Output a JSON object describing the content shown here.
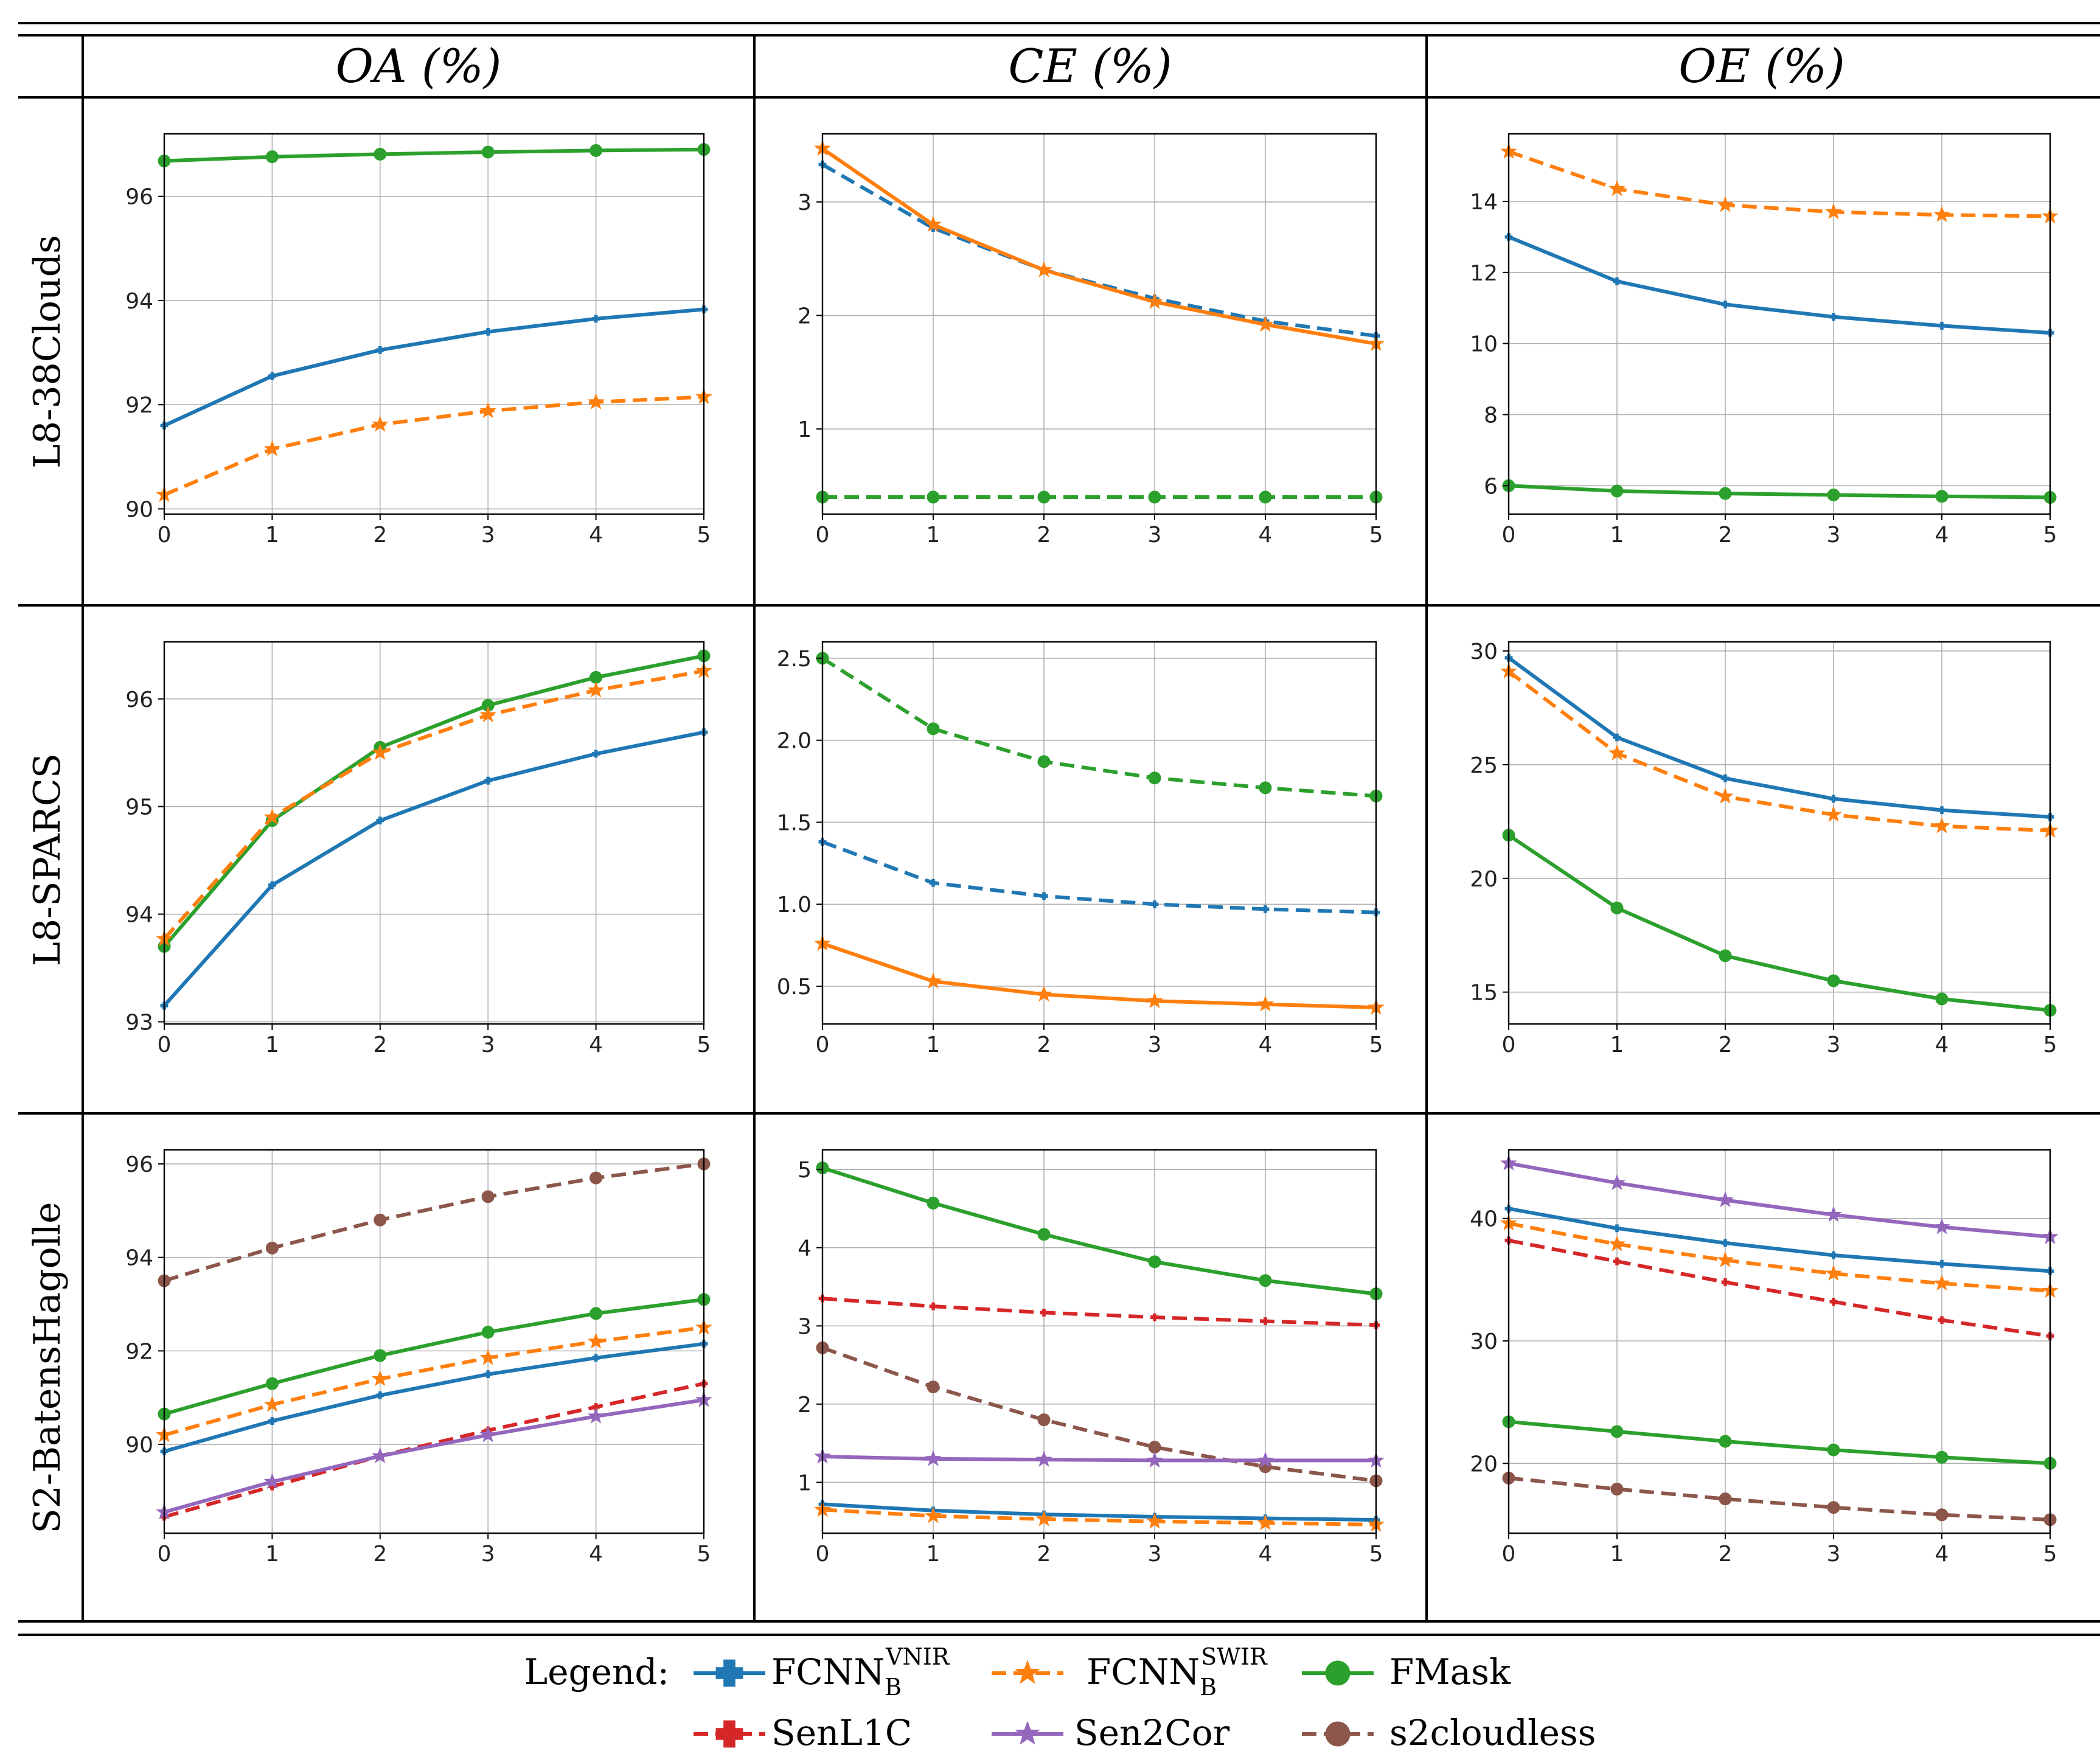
{
  "column_headers": [
    "OA (%)",
    "CE (%)",
    "OE (%)"
  ],
  "row_headers": [
    "L8-38Clouds",
    "L8-SPARCS",
    "S2-BatensHagolle"
  ],
  "legend": {
    "title": "Legend:",
    "items": [
      {
        "key": "vnir",
        "name": "FCNN",
        "sub": "B",
        "sup": "VNIR"
      },
      {
        "key": "swir",
        "name": "FCNN",
        "sub": "B",
        "sup": "SWIR"
      },
      {
        "key": "fmask",
        "name": "FMask"
      },
      {
        "key": "senl1c",
        "name": "SenL1C"
      },
      {
        "key": "sen2cor",
        "name": "Sen2Cor"
      },
      {
        "key": "s2cloudless",
        "name": "s2cloudless"
      }
    ]
  },
  "series_styles": {
    "vnir": {
      "color": "#1f77b4",
      "marker": "plus"
    },
    "swir": {
      "color": "#ff7f0e",
      "marker": "star"
    },
    "fmask": {
      "color": "#2ca02c",
      "marker": "circle"
    },
    "senl1c": {
      "color": "#d62728",
      "marker": "plus"
    },
    "sen2cor": {
      "color": "#9467bd",
      "marker": "star"
    },
    "s2cloudless": {
      "color": "#8c564b",
      "marker": "circle"
    }
  },
  "chart_data": [
    {
      "type": "line",
      "row": "L8-38Clouds",
      "metric": "OA (%)",
      "x": [
        0,
        1,
        2,
        3,
        4,
        5
      ],
      "xlim": [
        0,
        5
      ],
      "ylim": [
        89.9,
        97.2
      ],
      "yticks": [
        90,
        92,
        94,
        96
      ],
      "xticks": [
        0,
        1,
        2,
        3,
        4,
        5
      ],
      "grid": true,
      "series": [
        {
          "key": "fmask",
          "name": "FMask",
          "dashed": false,
          "markers": true,
          "values": [
            96.68,
            96.76,
            96.81,
            96.85,
            96.88,
            96.9
          ]
        },
        {
          "key": "vnir",
          "name": "FCNN VNIR",
          "dashed": false,
          "markers": false,
          "values": [
            91.6,
            92.55,
            93.05,
            93.4,
            93.65,
            93.83
          ]
        },
        {
          "key": "swir",
          "name": "FCNN SWIR",
          "dashed": true,
          "markers": true,
          "values": [
            90.27,
            91.15,
            91.62,
            91.88,
            92.05,
            92.15
          ]
        }
      ]
    },
    {
      "type": "line",
      "row": "L8-38Clouds",
      "metric": "CE (%)",
      "x": [
        0,
        1,
        2,
        3,
        4,
        5
      ],
      "xlim": [
        0,
        5
      ],
      "ylim": [
        0.25,
        3.6
      ],
      "yticks": [
        1,
        2,
        3
      ],
      "xticks": [
        0,
        1,
        2,
        3,
        4,
        5
      ],
      "grid": true,
      "series": [
        {
          "key": "vnir",
          "name": "FCNN VNIR",
          "dashed": true,
          "markers": false,
          "values": [
            3.33,
            2.77,
            2.4,
            2.15,
            1.95,
            1.82
          ]
        },
        {
          "key": "swir",
          "name": "FCNN SWIR",
          "dashed": false,
          "markers": true,
          "values": [
            3.47,
            2.8,
            2.4,
            2.12,
            1.92,
            1.75
          ]
        },
        {
          "key": "fmask",
          "name": "FMask",
          "dashed": true,
          "markers": true,
          "values": [
            0.4,
            0.4,
            0.4,
            0.4,
            0.4,
            0.4
          ]
        }
      ]
    },
    {
      "type": "line",
      "row": "L8-38Clouds",
      "metric": "OE (%)",
      "x": [
        0,
        1,
        2,
        3,
        4,
        5
      ],
      "xlim": [
        0,
        5
      ],
      "ylim": [
        5.2,
        15.9
      ],
      "yticks": [
        6,
        8,
        10,
        12,
        14
      ],
      "xticks": [
        0,
        1,
        2,
        3,
        4,
        5
      ],
      "grid": true,
      "series": [
        {
          "key": "swir",
          "name": "FCNN SWIR",
          "dashed": true,
          "markers": true,
          "values": [
            15.4,
            14.35,
            13.9,
            13.7,
            13.62,
            13.58
          ]
        },
        {
          "key": "vnir",
          "name": "FCNN VNIR",
          "dashed": false,
          "markers": false,
          "values": [
            13.0,
            11.75,
            11.1,
            10.75,
            10.5,
            10.3
          ]
        },
        {
          "key": "fmask",
          "name": "FMask",
          "dashed": false,
          "markers": true,
          "values": [
            6.0,
            5.85,
            5.78,
            5.74,
            5.7,
            5.67
          ]
        }
      ]
    },
    {
      "type": "line",
      "row": "L8-SPARCS",
      "metric": "OA (%)",
      "x": [
        0,
        1,
        2,
        3,
        4,
        5
      ],
      "xlim": [
        0,
        5
      ],
      "ylim": [
        92.98,
        96.53
      ],
      "yticks": [
        93,
        94,
        95,
        96
      ],
      "xticks": [
        0,
        1,
        2,
        3,
        4,
        5
      ],
      "grid": true,
      "series": [
        {
          "key": "fmask",
          "name": "FMask",
          "dashed": false,
          "markers": true,
          "values": [
            93.7,
            94.87,
            95.55,
            95.94,
            96.2,
            96.4
          ]
        },
        {
          "key": "swir",
          "name": "FCNN SWIR",
          "dashed": true,
          "markers": true,
          "values": [
            93.77,
            94.9,
            95.5,
            95.85,
            96.08,
            96.26
          ]
        },
        {
          "key": "vnir",
          "name": "FCNN VNIR",
          "dashed": false,
          "markers": false,
          "values": [
            93.15,
            94.27,
            94.87,
            95.24,
            95.49,
            95.69
          ]
        }
      ]
    },
    {
      "type": "line",
      "row": "L8-SPARCS",
      "metric": "CE (%)",
      "x": [
        0,
        1,
        2,
        3,
        4,
        5
      ],
      "xlim": [
        0,
        5
      ],
      "ylim": [
        0.27,
        2.6
      ],
      "yticks": [
        0.5,
        1.0,
        1.5,
        2.0,
        2.5
      ],
      "xticks": [
        0,
        1,
        2,
        3,
        4,
        5
      ],
      "grid": true,
      "series": [
        {
          "key": "fmask",
          "name": "FMask",
          "dashed": true,
          "markers": true,
          "values": [
            2.5,
            2.07,
            1.87,
            1.77,
            1.71,
            1.66
          ]
        },
        {
          "key": "vnir",
          "name": "FCNN VNIR",
          "dashed": true,
          "markers": false,
          "values": [
            1.38,
            1.13,
            1.05,
            1.0,
            0.97,
            0.95
          ]
        },
        {
          "key": "swir",
          "name": "FCNN SWIR",
          "dashed": false,
          "markers": true,
          "values": [
            0.76,
            0.53,
            0.45,
            0.41,
            0.39,
            0.37
          ]
        }
      ]
    },
    {
      "type": "line",
      "row": "L8-SPARCS",
      "metric": "OE (%)",
      "x": [
        0,
        1,
        2,
        3,
        4,
        5
      ],
      "xlim": [
        0,
        5
      ],
      "ylim": [
        13.6,
        30.4
      ],
      "yticks": [
        15,
        20,
        25,
        30
      ],
      "xticks": [
        0,
        1,
        2,
        3,
        4,
        5
      ],
      "grid": true,
      "series": [
        {
          "key": "vnir",
          "name": "FCNN VNIR",
          "dashed": false,
          "markers": false,
          "values": [
            29.7,
            26.2,
            24.4,
            23.5,
            23.0,
            22.7
          ]
        },
        {
          "key": "swir",
          "name": "FCNN SWIR",
          "dashed": true,
          "markers": true,
          "values": [
            29.1,
            25.5,
            23.6,
            22.8,
            22.3,
            22.1
          ]
        },
        {
          "key": "fmask",
          "name": "FMask",
          "dashed": false,
          "markers": true,
          "values": [
            21.9,
            18.7,
            16.6,
            15.5,
            14.7,
            14.2
          ]
        }
      ]
    },
    {
      "type": "line",
      "row": "S2-BatensHagolle",
      "metric": "OA (%)",
      "x": [
        0,
        1,
        2,
        3,
        4,
        5
      ],
      "xlim": [
        0,
        5
      ],
      "ylim": [
        88.1,
        96.3
      ],
      "yticks": [
        90,
        92,
        94,
        96
      ],
      "xticks": [
        0,
        1,
        2,
        3,
        4,
        5
      ],
      "grid": true,
      "series": [
        {
          "key": "s2cloudless",
          "name": "s2cloudless",
          "dashed": true,
          "markers": true,
          "values": [
            93.5,
            94.2,
            94.8,
            95.3,
            95.7,
            96.0
          ]
        },
        {
          "key": "fmask",
          "name": "FMask",
          "dashed": false,
          "markers": true,
          "values": [
            90.65,
            91.3,
            91.9,
            92.4,
            92.8,
            93.1
          ]
        },
        {
          "key": "swir",
          "name": "FCNN SWIR",
          "dashed": true,
          "markers": true,
          "values": [
            90.2,
            90.85,
            91.4,
            91.85,
            92.2,
            92.5
          ]
        },
        {
          "key": "vnir",
          "name": "FCNN VNIR",
          "dashed": false,
          "markers": false,
          "values": [
            89.85,
            90.5,
            91.05,
            91.5,
            91.85,
            92.15
          ]
        },
        {
          "key": "senl1c",
          "name": "SenL1C",
          "dashed": true,
          "markers": false,
          "values": [
            88.45,
            89.1,
            89.75,
            90.3,
            90.8,
            91.3
          ]
        },
        {
          "key": "sen2cor",
          "name": "Sen2Cor",
          "dashed": false,
          "markers": true,
          "values": [
            88.55,
            89.2,
            89.75,
            90.2,
            90.6,
            90.95
          ]
        }
      ]
    },
    {
      "type": "line",
      "row": "S2-BatensHagolle",
      "metric": "CE (%)",
      "x": [
        0,
        1,
        2,
        3,
        4,
        5
      ],
      "xlim": [
        0,
        5
      ],
      "ylim": [
        0.35,
        5.25
      ],
      "yticks": [
        1,
        2,
        3,
        4,
        5
      ],
      "xticks": [
        0,
        1,
        2,
        3,
        4,
        5
      ],
      "grid": true,
      "series": [
        {
          "key": "fmask",
          "name": "FMask",
          "dashed": false,
          "markers": true,
          "values": [
            5.02,
            4.57,
            4.17,
            3.82,
            3.58,
            3.41
          ]
        },
        {
          "key": "senl1c",
          "name": "SenL1C",
          "dashed": true,
          "markers": false,
          "values": [
            3.35,
            3.25,
            3.17,
            3.11,
            3.06,
            3.01
          ]
        },
        {
          "key": "s2cloudless",
          "name": "s2cloudless",
          "dashed": true,
          "markers": true,
          "values": [
            2.72,
            2.22,
            1.8,
            1.45,
            1.2,
            1.02
          ]
        },
        {
          "key": "sen2cor",
          "name": "Sen2Cor",
          "dashed": false,
          "markers": true,
          "values": [
            1.33,
            1.3,
            1.29,
            1.28,
            1.28,
            1.28
          ]
        },
        {
          "key": "vnir",
          "name": "FCNN VNIR",
          "dashed": false,
          "markers": false,
          "values": [
            0.72,
            0.64,
            0.59,
            0.56,
            0.54,
            0.52
          ]
        },
        {
          "key": "swir",
          "name": "FCNN SWIR",
          "dashed": true,
          "markers": true,
          "values": [
            0.65,
            0.57,
            0.53,
            0.5,
            0.48,
            0.46
          ]
        }
      ]
    },
    {
      "type": "line",
      "row": "S2-BatensHagolle",
      "metric": "OE (%)",
      "x": [
        0,
        1,
        2,
        3,
        4,
        5
      ],
      "xlim": [
        0,
        5
      ],
      "ylim": [
        14.3,
        45.6
      ],
      "yticks": [
        20,
        30,
        40
      ],
      "xticks": [
        0,
        1,
        2,
        3,
        4,
        5
      ],
      "grid": true,
      "series": [
        {
          "key": "sen2cor",
          "name": "Sen2Cor",
          "dashed": false,
          "markers": true,
          "values": [
            44.5,
            42.9,
            41.5,
            40.3,
            39.3,
            38.5
          ]
        },
        {
          "key": "vnir",
          "name": "FCNN VNIR",
          "dashed": false,
          "markers": false,
          "values": [
            40.8,
            39.2,
            38.0,
            37.0,
            36.3,
            35.7
          ]
        },
        {
          "key": "swir",
          "name": "FCNN SWIR",
          "dashed": true,
          "markers": true,
          "values": [
            39.6,
            37.9,
            36.6,
            35.5,
            34.7,
            34.1
          ]
        },
        {
          "key": "senl1c",
          "name": "SenL1C",
          "dashed": true,
          "markers": false,
          "values": [
            38.2,
            36.5,
            34.8,
            33.2,
            31.7,
            30.4
          ]
        },
        {
          "key": "fmask",
          "name": "FMask",
          "dashed": false,
          "markers": true,
          "values": [
            23.4,
            22.6,
            21.8,
            21.1,
            20.5,
            20.0
          ]
        },
        {
          "key": "s2cloudless",
          "name": "s2cloudless",
          "dashed": true,
          "markers": true,
          "values": [
            18.8,
            17.9,
            17.1,
            16.4,
            15.8,
            15.4
          ]
        }
      ]
    }
  ]
}
